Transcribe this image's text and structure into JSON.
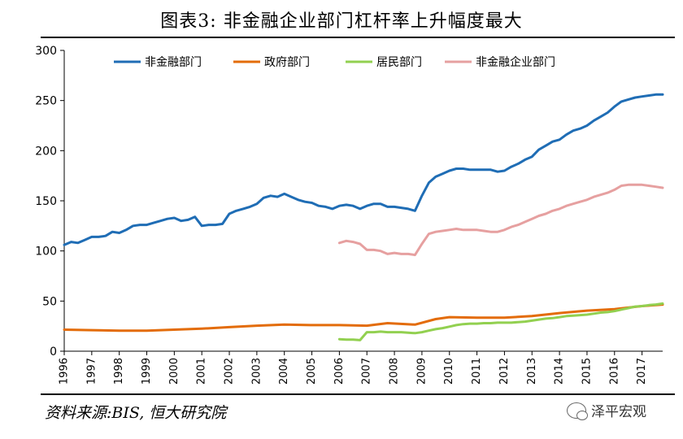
{
  "title": "图表3:    非金融企业部门杠杆率上升幅度最大",
  "source": "资料来源:BIS, 恒大研究院",
  "watermark": "泽平宏观",
  "watermark_icon": "wechat-icon",
  "chart_data": {
    "type": "line",
    "title": "图表3:    非金融企业部门杠杆率上升幅度最大",
    "xlabel": "",
    "ylabel": "",
    "ylim": [
      0,
      300
    ],
    "xlim": [
      1996,
      2017.75
    ],
    "yticks": [
      0,
      50,
      100,
      150,
      200,
      250,
      300
    ],
    "xticks": [
      "1996",
      "1997",
      "1998",
      "1999",
      "2000",
      "2001",
      "2002",
      "2003",
      "2004",
      "2005",
      "2006",
      "2007",
      "2008",
      "2009",
      "2010",
      "2011",
      "2012",
      "2013",
      "2014",
      "2015",
      "2016",
      "2017"
    ],
    "grid": false,
    "legend_position": "top",
    "series": [
      {
        "name": "非金融部门",
        "color": "#1f6db5",
        "x": [
          1996,
          1996.25,
          1996.5,
          1996.75,
          1997,
          1997.25,
          1997.5,
          1997.75,
          1998,
          1998.25,
          1998.5,
          1998.75,
          1999,
          1999.25,
          1999.5,
          1999.75,
          2000,
          2000.25,
          2000.5,
          2000.75,
          2001,
          2001.25,
          2001.5,
          2001.75,
          2002,
          2002.25,
          2002.5,
          2002.75,
          2003,
          2003.25,
          2003.5,
          2003.75,
          2004,
          2004.25,
          2004.5,
          2004.75,
          2005,
          2005.25,
          2005.5,
          2005.75,
          2006,
          2006.25,
          2006.5,
          2006.75,
          2007,
          2007.25,
          2007.5,
          2007.75,
          2008,
          2008.25,
          2008.5,
          2008.75,
          2009,
          2009.25,
          2009.5,
          2009.75,
          2010,
          2010.25,
          2010.5,
          2010.75,
          2011,
          2011.25,
          2011.5,
          2011.75,
          2012,
          2012.25,
          2012.5,
          2012.75,
          2013,
          2013.25,
          2013.5,
          2013.75,
          2014,
          2014.25,
          2014.5,
          2014.75,
          2015,
          2015.25,
          2015.5,
          2015.75,
          2016,
          2016.25,
          2016.5,
          2016.75,
          2017,
          2017.25,
          2017.5,
          2017.75
        ],
        "values": [
          106,
          109,
          108,
          111,
          114,
          114,
          115,
          119,
          118,
          121,
          125,
          126,
          126,
          128,
          130,
          132,
          133,
          130,
          131,
          134,
          125,
          126,
          126,
          127,
          137,
          140,
          142,
          144,
          147,
          153,
          155,
          154,
          157,
          154,
          151,
          149,
          148,
          145,
          144,
          142,
          145,
          146,
          145,
          142,
          145,
          147,
          147,
          144,
          144,
          143,
          142,
          140,
          155,
          168,
          174,
          177,
          180,
          182,
          182,
          181,
          181,
          181,
          181,
          179,
          180,
          184,
          187,
          191,
          194,
          201,
          205,
          209,
          211,
          216,
          220,
          222,
          225,
          230,
          234,
          238,
          244,
          249,
          251,
          253,
          254,
          255,
          256,
          256
        ]
      },
      {
        "name": "政府部门",
        "color": "#e36c0a",
        "x": [
          1996,
          1997,
          1998,
          1999,
          2000,
          2001,
          2002,
          2003,
          2004,
          2005,
          2006,
          2007,
          2007.75,
          2008.75,
          2009.5,
          2010,
          2011,
          2012,
          2013,
          2014,
          2015,
          2016,
          2017,
          2017.75
        ],
        "values": [
          21.5,
          21,
          20.5,
          20.5,
          21.5,
          22.5,
          24,
          25.5,
          26.5,
          26,
          26,
          25.5,
          28,
          26.5,
          32,
          34,
          33.5,
          33.5,
          35,
          38,
          40.5,
          42,
          45,
          46.5
        ]
      },
      {
        "name": "居民部门",
        "color": "#92d050",
        "x": [
          2006,
          2006.25,
          2006.5,
          2006.75,
          2007,
          2007.25,
          2007.5,
          2007.75,
          2008,
          2008.25,
          2008.5,
          2008.75,
          2009,
          2009.25,
          2009.5,
          2009.75,
          2010,
          2010.25,
          2010.5,
          2010.75,
          2011,
          2011.25,
          2011.5,
          2011.75,
          2012,
          2012.25,
          2012.5,
          2012.75,
          2013,
          2013.25,
          2013.5,
          2013.75,
          2014,
          2014.25,
          2014.5,
          2014.75,
          2015,
          2015.25,
          2015.5,
          2015.75,
          2016,
          2016.25,
          2016.5,
          2016.75,
          2017,
          2017.25,
          2017.5,
          2017.75
        ],
        "values": [
          12,
          11.5,
          11.5,
          11,
          19,
          19,
          19.5,
          19,
          19,
          19,
          18.5,
          18,
          19,
          20.5,
          22,
          23,
          24.5,
          26,
          27,
          27.5,
          27.5,
          28,
          28,
          28.5,
          28.5,
          28.5,
          29,
          29.5,
          30.5,
          31.5,
          32.5,
          33,
          34,
          35,
          35.5,
          36,
          36.5,
          37.5,
          38.5,
          39,
          40,
          41.5,
          43,
          44.5,
          45,
          46,
          46.5,
          47.5
        ]
      },
      {
        "name": "非金融企业部门",
        "color": "#e6a0a0",
        "x": [
          2006,
          2006.25,
          2006.5,
          2006.75,
          2007,
          2007.25,
          2007.5,
          2007.75,
          2008,
          2008.25,
          2008.5,
          2008.75,
          2009,
          2009.25,
          2009.5,
          2009.75,
          2010,
          2010.25,
          2010.5,
          2010.75,
          2011,
          2011.25,
          2011.5,
          2011.75,
          2012,
          2012.25,
          2012.5,
          2012.75,
          2013,
          2013.25,
          2013.5,
          2013.75,
          2014,
          2014.25,
          2014.5,
          2014.75,
          2015,
          2015.25,
          2015.5,
          2015.75,
          2016,
          2016.25,
          2016.5,
          2016.75,
          2017,
          2017.25,
          2017.5,
          2017.75
        ],
        "values": [
          108,
          110,
          109,
          107,
          101,
          101,
          100,
          97,
          98,
          97,
          97,
          96,
          107,
          117,
          119,
          120,
          121,
          122,
          121,
          121,
          121,
          120,
          119,
          119,
          121,
          124,
          126,
          129,
          132,
          135,
          137,
          140,
          142,
          145,
          147,
          149,
          151,
          154,
          156,
          158,
          161,
          165,
          166,
          166,
          166,
          165,
          164,
          163
        ]
      }
    ]
  }
}
